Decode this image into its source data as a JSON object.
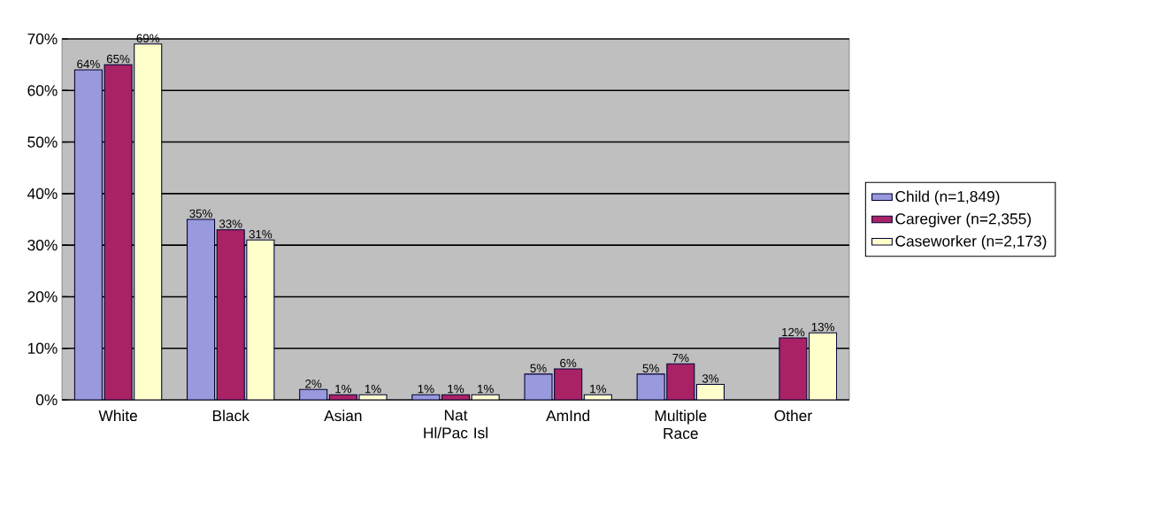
{
  "chart_data": {
    "type": "bar",
    "categories": [
      "White",
      "Black",
      "Asian",
      "Nat Hl/Pac Isl",
      "AmInd",
      "Multiple Race",
      "Other"
    ],
    "series": [
      {
        "name": "Child (n=1,849)",
        "color": "#9999dd",
        "values": [
          64,
          35,
          2,
          1,
          5,
          5,
          null
        ],
        "value_labels": [
          "64%",
          "35%",
          "2%",
          "1%",
          "5%",
          "5%",
          null
        ]
      },
      {
        "name": "Caregiver (n=2,355)",
        "color": "#aa2266",
        "values": [
          65,
          33,
          1,
          1,
          6,
          7,
          12
        ],
        "value_labels": [
          "65%",
          "33%",
          "1%",
          "1%",
          "6%",
          "7%",
          "12%"
        ]
      },
      {
        "name": "Caseworker (n=2,173)",
        "color": "#ffffcc",
        "values": [
          69,
          31,
          1,
          1,
          1,
          3,
          13
        ],
        "value_labels": [
          "69%",
          "31%",
          "1%",
          "1%",
          "1%",
          "3%",
          "13%"
        ]
      }
    ],
    "ylim": [
      0,
      70
    ],
    "yticks": [
      {
        "value": 0,
        "label": "0%"
      },
      {
        "value": 10,
        "label": "10%"
      },
      {
        "value": 20,
        "label": "20%"
      },
      {
        "value": 30,
        "label": "30%"
      },
      {
        "value": 40,
        "label": "40%"
      },
      {
        "value": 50,
        "label": "50%"
      },
      {
        "value": 60,
        "label": "60%"
      },
      {
        "value": 70,
        "label": "70%"
      }
    ],
    "grid": "y",
    "legend": "right"
  }
}
